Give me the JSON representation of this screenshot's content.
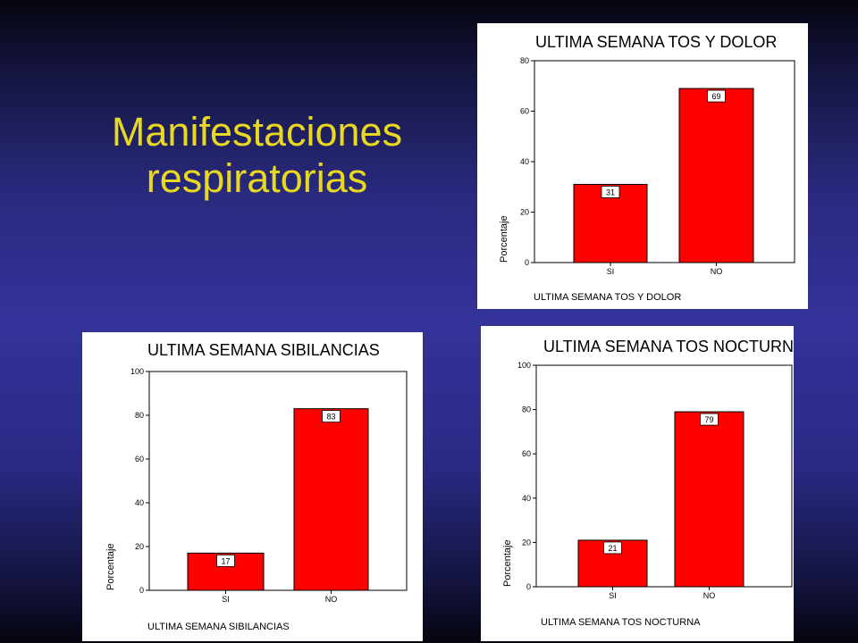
{
  "slide": {
    "title_lines": [
      "Manifestaciones",
      "respiratorias"
    ]
  },
  "colors": {
    "bar": "#ff0000",
    "title": "#e8d820"
  },
  "chart_data": [
    {
      "type": "bar",
      "title": "ULTIMA SEMANA TOS Y DOLOR",
      "xlabel": "ULTIMA SEMANA TOS Y DOLOR",
      "ylabel": "Porcentaje",
      "categories": [
        "SI",
        "NO"
      ],
      "values": [
        31,
        69
      ],
      "data_labels": [
        "31",
        "69"
      ],
      "ylim": [
        0,
        80
      ],
      "yticks": [
        0,
        20,
        40,
        60,
        80
      ],
      "ytick_labels": [
        "0",
        "20",
        "40",
        "60",
        "80"
      ]
    },
    {
      "type": "bar",
      "title": "ULTIMA SEMANA SIBILANCIAS",
      "xlabel": "ULTIMA SEMANA SIBILANCIAS",
      "ylabel": "Porcentaje",
      "categories": [
        "SI",
        "NO"
      ],
      "values": [
        17,
        83
      ],
      "data_labels": [
        "17",
        "83"
      ],
      "ylim": [
        0,
        100
      ],
      "yticks": [
        0,
        20,
        40,
        60,
        80,
        100
      ],
      "ytick_labels": [
        "0",
        "20",
        "40",
        "60",
        "80",
        "100"
      ]
    },
    {
      "type": "bar",
      "title": "ULTIMA SEMANA TOS NOCTURNA",
      "xlabel": "ULTIMA SEMANA TOS NOCTURNA",
      "ylabel": "Porcentaje",
      "categories": [
        "SI",
        "NO"
      ],
      "values": [
        21,
        79
      ],
      "data_labels": [
        "21",
        "79"
      ],
      "ylim": [
        0,
        100
      ],
      "yticks": [
        0,
        20,
        40,
        60,
        80,
        100
      ],
      "ytick_labels": [
        "0",
        "20",
        "40",
        "60",
        "80",
        "100"
      ]
    }
  ]
}
